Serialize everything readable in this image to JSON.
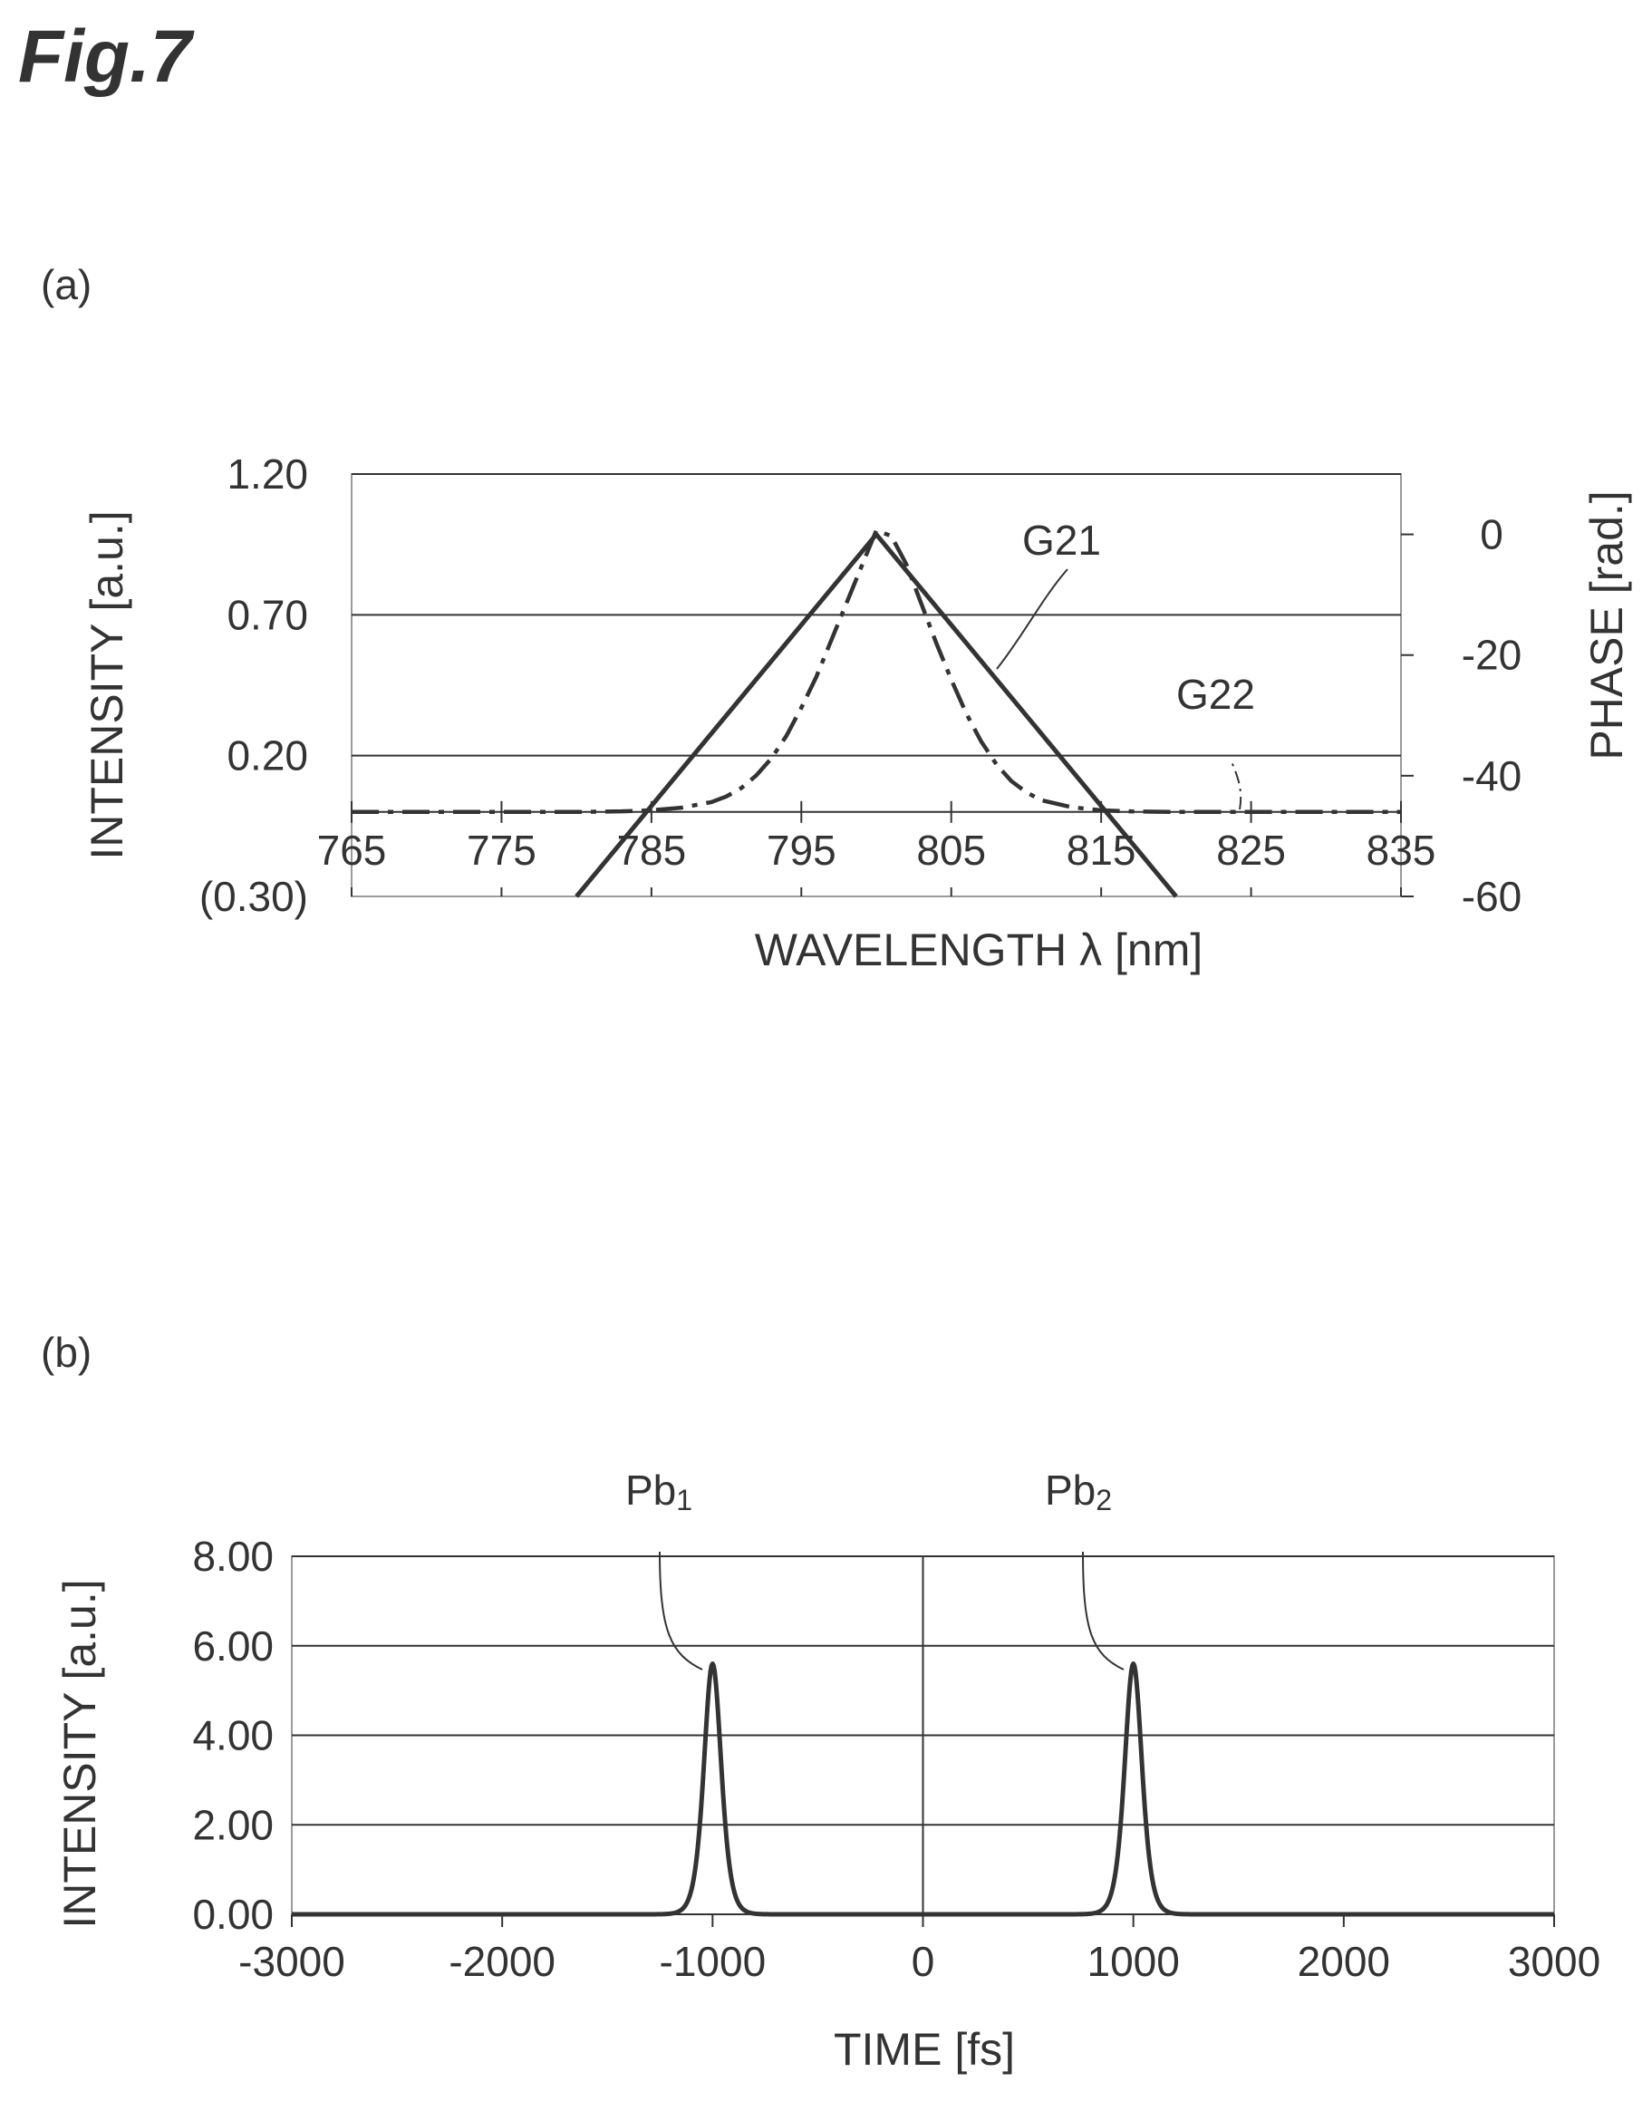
{
  "figure_label": "Fig.7",
  "chart_data": [
    {
      "panel_label": "(a)",
      "type": "line",
      "xlabel": "WAVELENGTH λ  [nm]",
      "ylabel": "INTENSITY [a.u.]",
      "y2label": "PHASE [rad.]",
      "xlim": [
        765,
        835
      ],
      "x_ticks": [
        "765",
        "775",
        "785",
        "795",
        "805",
        "815",
        "825",
        "835"
      ],
      "ylim": [
        -0.3,
        1.2
      ],
      "y_ticks": [
        {
          "value": 1.2,
          "label": "1.20"
        },
        {
          "value": 0.7,
          "label": "0.70"
        },
        {
          "value": 0.2,
          "label": "0.20"
        },
        {
          "value": -0.3,
          "label": "(0.30)"
        }
      ],
      "y_gridlines": [
        1.2,
        0.7,
        0.2,
        0.0
      ],
      "y2lim": [
        -60,
        10
      ],
      "y2_ticks": [
        {
          "value": 0,
          "label": "0"
        },
        {
          "value": -20,
          "label": "-20"
        },
        {
          "value": -40,
          "label": "-40"
        },
        {
          "value": -60,
          "label": "-60"
        }
      ],
      "series": [
        {
          "name": "G21",
          "axis": "y2",
          "style": "solid",
          "x": [
            780,
            800,
            820
          ],
          "y": [
            -60,
            0,
            -60
          ]
        },
        {
          "name": "G22",
          "axis": "y",
          "style": "dash-dot",
          "x": [
            765,
            780,
            783,
            785,
            787,
            789,
            790,
            791,
            792,
            793,
            794,
            795,
            796,
            797,
            798,
            799,
            800,
            801,
            802,
            803,
            804,
            805,
            806,
            807,
            808,
            809,
            810,
            811,
            813,
            815,
            817,
            820,
            835
          ],
          "y": [
            0.0,
            0.0,
            0.002,
            0.006,
            0.015,
            0.035,
            0.055,
            0.085,
            0.13,
            0.19,
            0.27,
            0.37,
            0.48,
            0.61,
            0.74,
            0.87,
            1.0,
            0.98,
            0.88,
            0.74,
            0.6,
            0.47,
            0.35,
            0.25,
            0.17,
            0.11,
            0.07,
            0.042,
            0.017,
            0.006,
            0.002,
            0.0,
            0.0
          ]
        }
      ]
    },
    {
      "panel_label": "(b)",
      "type": "line",
      "xlabel": "TIME [fs]",
      "ylabel": "INTENSITY [a.u.]",
      "xlim": [
        -3000,
        3000
      ],
      "x_ticks": [
        "-3000",
        "-2000",
        "-1000",
        "0",
        "1000",
        "2000",
        "3000"
      ],
      "ylim": [
        0,
        8
      ],
      "y_ticks": [
        {
          "value": 8,
          "label": "8.00"
        },
        {
          "value": 6,
          "label": "6.00"
        },
        {
          "value": 4,
          "label": "4.00"
        },
        {
          "value": 2,
          "label": "2.00"
        },
        {
          "value": 0,
          "label": "0.00"
        }
      ],
      "series": [
        {
          "style": "solid",
          "pulses": [
            {
              "label": "Pb",
              "subscript": "1",
              "center": -1000,
              "peak": 5.6
            },
            {
              "label": "Pb",
              "subscript": "2",
              "center": 1000,
              "peak": 5.6
            }
          ]
        }
      ]
    }
  ]
}
